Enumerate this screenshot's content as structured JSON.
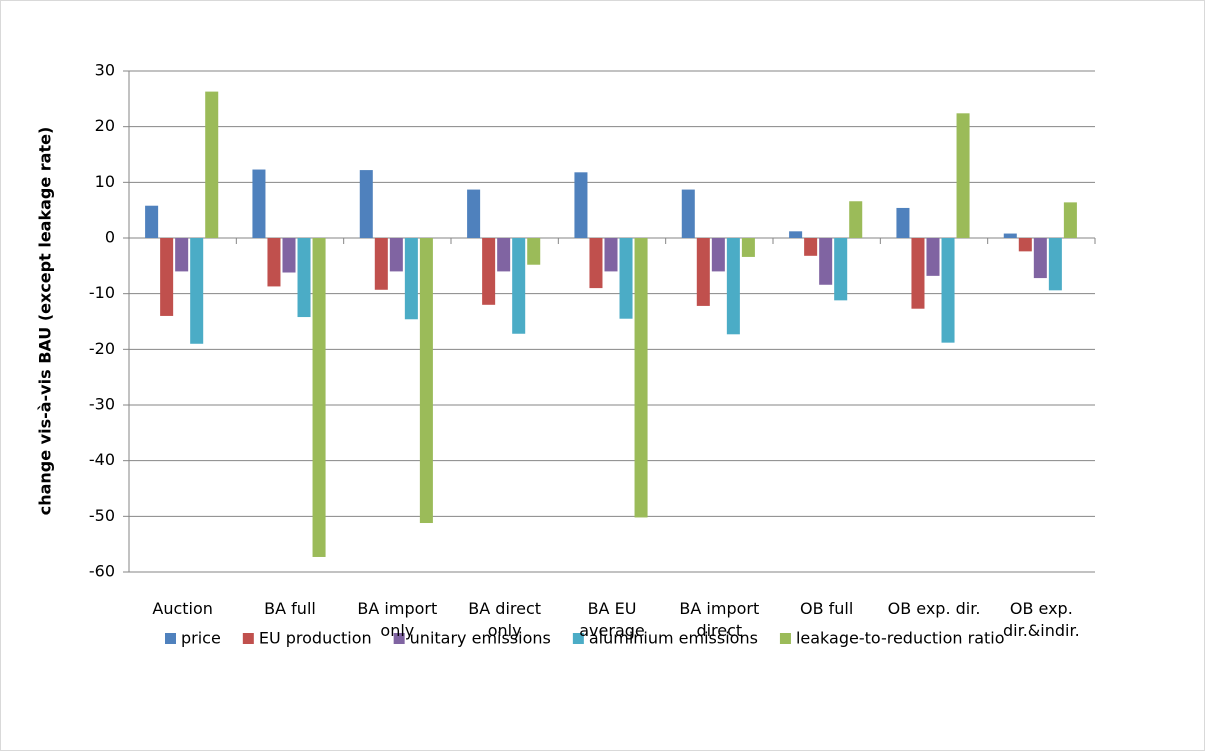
{
  "chart_data": {
    "type": "bar",
    "y_label": "change vis-à-vis BAU (except leakage rate)",
    "categories": [
      "Auction",
      "BA full",
      "BA import only",
      "BA direct only",
      "BA EU average",
      "BA import direct",
      "OB full",
      "OB exp. dir.",
      "OB exp. dir.&indir."
    ],
    "series": [
      {
        "name": "price",
        "color": "#4f81bd",
        "values": [
          5.8,
          12.3,
          12.2,
          8.7,
          11.8,
          8.7,
          1.2,
          5.4,
          0.8
        ]
      },
      {
        "name": "EU production",
        "color": "#c0504d",
        "values": [
          -14,
          -8.7,
          -9.3,
          -12,
          -9,
          -12.2,
          -3.2,
          -12.7,
          -2.4
        ]
      },
      {
        "name": "unitary emissions",
        "color": "#8064a2",
        "values": [
          -6,
          -6.2,
          -6,
          -6,
          -6,
          -6,
          -8.4,
          -6.8,
          -7.2
        ]
      },
      {
        "name": "aluminium emissions",
        "color": "#4bacc6",
        "values": [
          -19,
          -14.2,
          -14.6,
          -17.2,
          -14.5,
          -17.3,
          -11.2,
          -18.8,
          -9.4
        ]
      },
      {
        "name": "leakage-to-reduction ratio",
        "color": "#9bbb59",
        "values": [
          26.3,
          -57.3,
          -51.2,
          -4.8,
          -50.2,
          -3.4,
          6.6,
          22.4,
          6.4
        ]
      }
    ],
    "ylim": [
      -60,
      30
    ],
    "yticks": [
      -60,
      -50,
      -40,
      -30,
      -20,
      -10,
      0,
      10,
      20,
      30
    ],
    "grid": true,
    "legend": "bottom"
  }
}
